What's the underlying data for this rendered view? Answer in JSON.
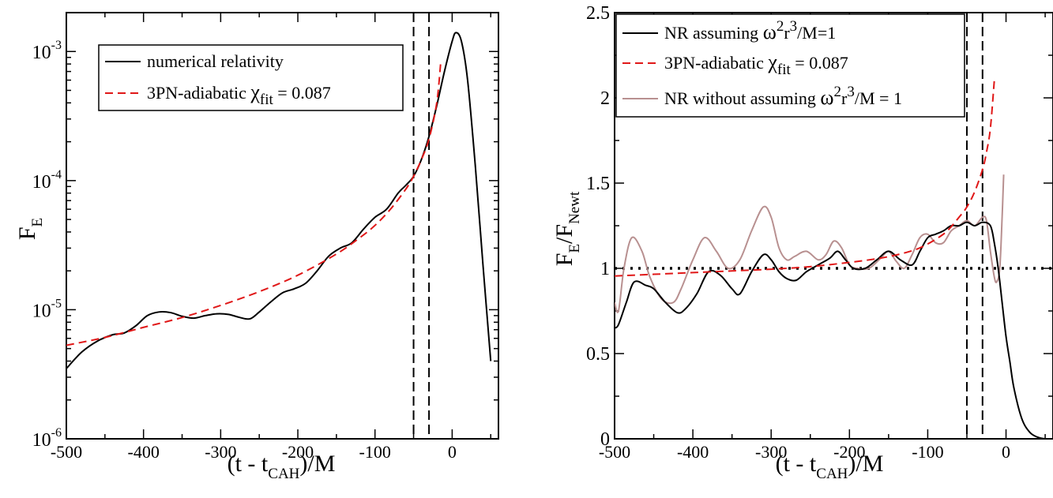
{
  "chart_data": [
    {
      "type": "line",
      "yscale": "log",
      "xlim": [
        -500,
        60
      ],
      "ylim": [
        1e-06,
        0.002
      ],
      "xticks": [
        -500,
        -400,
        -300,
        -200,
        -100,
        0
      ],
      "xtick_labels": [
        "-500",
        "-400",
        "-300",
        "-200",
        "-100",
        "0"
      ],
      "ytick_labels": [
        {
          "value": 1e-06,
          "base": "10",
          "exp": "-6"
        },
        {
          "value": 1e-05,
          "base": "10",
          "exp": "-5"
        },
        {
          "value": 0.0001,
          "base": "10",
          "exp": "-4"
        },
        {
          "value": 0.001,
          "base": "10",
          "exp": "-3"
        }
      ],
      "xlabel": {
        "main": "(t - t",
        "sub": "CAH",
        "tail": ")/M"
      },
      "ylabel": {
        "main": "F",
        "sub": "E"
      },
      "vlines": [
        -50,
        -30
      ],
      "legend": {
        "position": "top-left",
        "entries": [
          {
            "label": "numerical relativity",
            "color": "#000000",
            "style": "solid"
          },
          {
            "label_main": "3PN-adiabatic ",
            "symbol": "χ",
            "sub": "fit",
            "tail": " = 0.087",
            "color": "#e01818",
            "style": "dashed"
          }
        ]
      },
      "series": [
        {
          "color": "#000000",
          "style": "solid",
          "x": [
            -500,
            -480,
            -460,
            -440,
            -425,
            -410,
            -395,
            -380,
            -365,
            -350,
            -335,
            -320,
            -305,
            -290,
            -275,
            -262,
            -250,
            -235,
            -220,
            -205,
            -190,
            -175,
            -160,
            -145,
            -130,
            -115,
            -100,
            -85,
            -70,
            -60,
            -50,
            -40,
            -30,
            -20,
            -10,
            0,
            5,
            12,
            20,
            30,
            40,
            50
          ],
          "y": [
            3.5e-06,
            4.7e-06,
            5.7e-06,
            6.4e-06,
            6.6e-06,
            7.5e-06,
            9e-06,
            9.6e-06,
            9.5e-06,
            8.9e-06,
            8.6e-06,
            9e-06,
            9.3e-06,
            9.2e-06,
            8.7e-06,
            8.5e-06,
            9.6e-06,
            1.15e-05,
            1.35e-05,
            1.45e-05,
            1.6e-05,
            2e-05,
            2.6e-05,
            3e-05,
            3.3e-05,
            4.2e-05,
            5.2e-05,
            6e-05,
            8e-05,
            9.2e-05,
            0.000108,
            0.000145,
            0.00022,
            0.00038,
            0.0007,
            0.0012,
            0.0014,
            0.0012,
            0.0006,
            0.00013,
            2.2e-05,
            4e-06
          ]
        },
        {
          "color": "#e01818",
          "style": "dashed",
          "x": [
            -500,
            -450,
            -400,
            -350,
            -300,
            -250,
            -200,
            -150,
            -120,
            -100,
            -80,
            -60,
            -50,
            -40,
            -30,
            -20,
            -15
          ],
          "y": [
            5.3e-06,
            6.1e-06,
            7.3e-06,
            8.7e-06,
            1.08e-05,
            1.38e-05,
            1.85e-05,
            2.7e-05,
            3.6e-05,
            4.5e-05,
            6e-05,
            8.6e-05,
            0.000108,
            0.000145,
            0.00021,
            0.0004,
            0.0008
          ]
        }
      ]
    },
    {
      "type": "line",
      "xlim": [
        -500,
        60
      ],
      "ylim": [
        0,
        2.5
      ],
      "xticks": [
        -500,
        -400,
        -300,
        -200,
        -100,
        0
      ],
      "xtick_labels": [
        "-500",
        "-400",
        "-300",
        "-200",
        "-100",
        "0"
      ],
      "yticks": [
        0,
        0.5,
        1,
        1.5,
        2,
        2.5
      ],
      "ytick_labels": [
        "0",
        "0.5",
        "1",
        "1.5",
        "2",
        "2.5"
      ],
      "xlabel": {
        "main": "(t - t",
        "sub": "CAH",
        "tail": ")/M"
      },
      "ylabel": {
        "main": "F",
        "sub": "E",
        "mid": "/F",
        "sub2": "Newt"
      },
      "vlines": [
        -50,
        -30
      ],
      "hline": 1,
      "legend": {
        "position": "top-left",
        "entries": [
          {
            "pre": "NR assuming ",
            "sym": "ω",
            "exp1": "2",
            "mid": "r",
            "exp2": "3",
            "post": "/M=1",
            "color": "#000000",
            "style": "solid"
          },
          {
            "pre": "3PN-adiabatic ",
            "sym": "χ",
            "sub": "fit",
            "post": " = 0.087",
            "color": "#e01818",
            "style": "dashed"
          },
          {
            "pre": "NR without assuming ",
            "sym": "ω",
            "exp1": "2",
            "mid": "r",
            "exp2": "3",
            "post": "/M = 1",
            "color": "#b89090",
            "style": "solid"
          }
        ]
      },
      "series": [
        {
          "color": "#b89090",
          "style": "solid",
          "x": [
            -500,
            -495,
            -488,
            -478,
            -465,
            -455,
            -440,
            -425,
            -415,
            -400,
            -385,
            -370,
            -355,
            -340,
            -325,
            -310,
            -300,
            -290,
            -280,
            -270,
            -255,
            -240,
            -230,
            -220,
            -210,
            -200,
            -190,
            -175,
            -160,
            -150,
            -140,
            -130,
            -120,
            -110,
            -100,
            -90,
            -80,
            -70,
            -60,
            -50,
            -40,
            -30,
            -25,
            -20,
            -15,
            -12,
            -8,
            -5,
            -3
          ],
          "y": [
            0.8,
            0.75,
            1.0,
            1.18,
            1.1,
            0.95,
            0.82,
            0.8,
            0.88,
            1.05,
            1.18,
            1.1,
            1.0,
            1.05,
            1.22,
            1.36,
            1.3,
            1.12,
            1.05,
            1.07,
            1.1,
            1.05,
            1.08,
            1.16,
            1.12,
            1.02,
            1.0,
            1.0,
            1.06,
            1.1,
            1.04,
            1.0,
            1.08,
            1.18,
            1.2,
            1.15,
            1.15,
            1.22,
            1.25,
            1.28,
            1.25,
            1.3,
            1.28,
            1.1,
            0.95,
            0.92,
            1.0,
            1.3,
            1.55
          ]
        },
        {
          "color": "#000000",
          "style": "solid",
          "x": [
            -500,
            -495,
            -485,
            -475,
            -460,
            -450,
            -435,
            -420,
            -410,
            -395,
            -380,
            -365,
            -350,
            -340,
            -325,
            -310,
            -300,
            -290,
            -280,
            -268,
            -255,
            -240,
            -225,
            -215,
            -205,
            -195,
            -180,
            -165,
            -150,
            -135,
            -120,
            -110,
            -100,
            -90,
            -80,
            -70,
            -60,
            -50,
            -40,
            -30,
            -20,
            -15,
            -10,
            -5,
            0,
            5,
            10,
            20,
            30,
            40,
            50,
            60
          ],
          "y": [
            0.65,
            0.67,
            0.8,
            0.92,
            0.9,
            0.88,
            0.8,
            0.74,
            0.76,
            0.85,
            0.98,
            0.96,
            0.88,
            0.85,
            0.98,
            1.08,
            1.05,
            0.98,
            0.94,
            0.93,
            0.98,
            1.02,
            1.06,
            1.1,
            1.05,
            1.0,
            1.0,
            1.05,
            1.1,
            1.05,
            1.02,
            1.1,
            1.18,
            1.2,
            1.22,
            1.25,
            1.25,
            1.27,
            1.25,
            1.27,
            1.25,
            1.15,
            1.0,
            0.8,
            0.6,
            0.45,
            0.3,
            0.12,
            0.04,
            0.01,
            0.0,
            0.0
          ]
        },
        {
          "color": "#e01818",
          "style": "dashed",
          "x": [
            -500,
            -450,
            -400,
            -350,
            -300,
            -250,
            -200,
            -160,
            -130,
            -110,
            -90,
            -75,
            -60,
            -50,
            -40,
            -30,
            -25,
            -20,
            -15
          ],
          "y": [
            0.955,
            0.965,
            0.975,
            0.985,
            0.995,
            1.01,
            1.035,
            1.06,
            1.09,
            1.12,
            1.17,
            1.22,
            1.3,
            1.36,
            1.45,
            1.58,
            1.68,
            1.82,
            2.1
          ]
        }
      ]
    }
  ]
}
